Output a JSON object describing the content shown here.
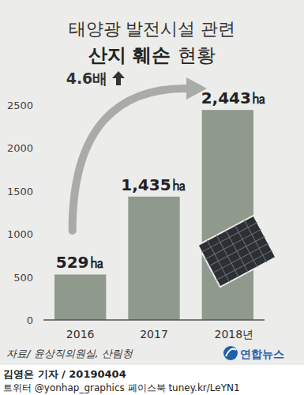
{
  "chart_data": {
    "type": "bar",
    "title": "태양광 발전시설 관련",
    "subtitle": "산지 훼손 현황",
    "categories": [
      "2016",
      "2017",
      "2018년"
    ],
    "values": [
      529,
      1435,
      2443
    ],
    "value_labels": [
      "529㏊",
      "1,435㏊",
      "2,443㏊"
    ],
    "data_labels": true,
    "color": "#8f998c",
    "ylim": [
      0,
      2500
    ],
    "yticks": [
      0,
      500,
      1000,
      1500,
      2000,
      2500
    ],
    "grid": false,
    "annotation": "4.6배",
    "source": "자료/ 윤상직의원실, 산림청",
    "logo_text": "연합뉴스",
    "byline": "김영은 기자 / 20190404",
    "footer": "트위터 @yonhap_graphics  페이스북 tuney.kr/LeYN1"
  }
}
